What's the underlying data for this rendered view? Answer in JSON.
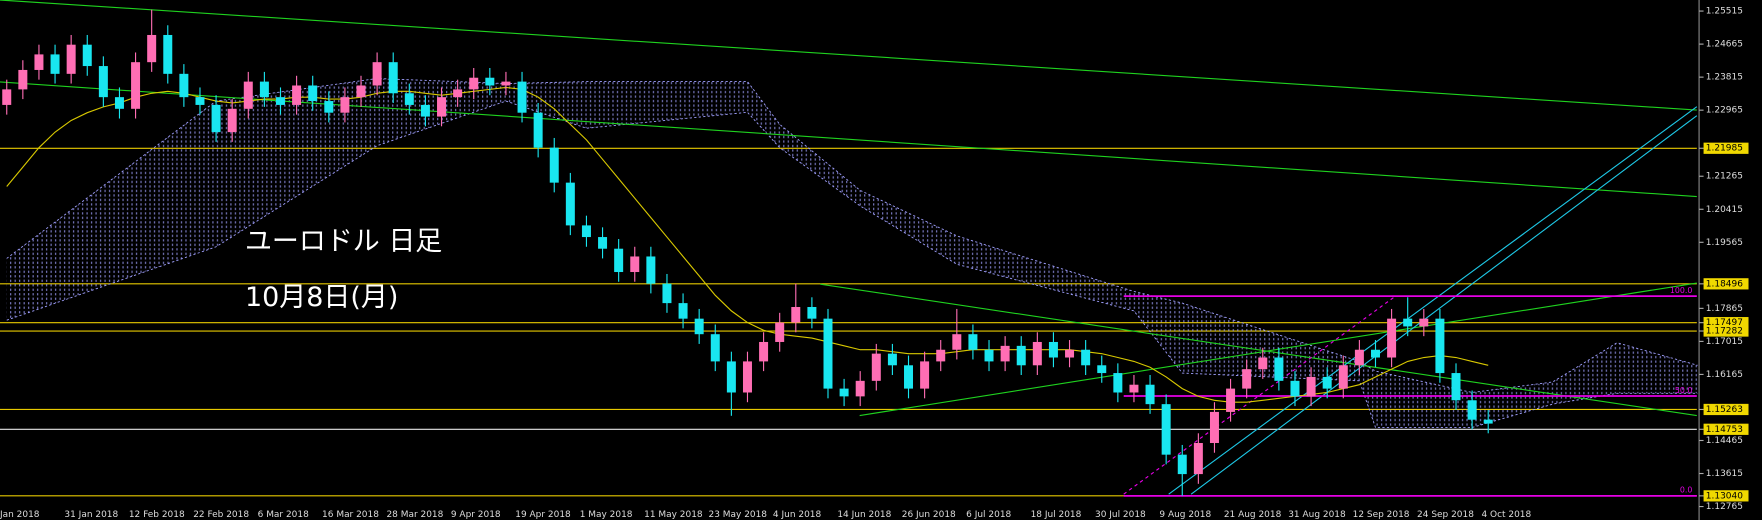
{
  "chart_data": {
    "type": "candlestick",
    "title": "ユーロドル 日足",
    "subtitle": "10月8日(月)",
    "categories": [
      "Jan 2018",
      null,
      null,
      null,
      "31 Jan 2018",
      null,
      null,
      null,
      "12 Feb 2018",
      null,
      null,
      null,
      "22 Feb 2018",
      null,
      null,
      null,
      "6 Mar 2018",
      null,
      null,
      null,
      "16 Mar 2018",
      null,
      null,
      null,
      "28 Mar 2018",
      null,
      null,
      null,
      "9 Apr 2018",
      null,
      null,
      null,
      "19 Apr 2018",
      null,
      null,
      null,
      "1 May 2018",
      null,
      null,
      null,
      "11 May 2018",
      null,
      null,
      null,
      "23 May 2018",
      null,
      null,
      null,
      "4 Jun 2018",
      null,
      null,
      null,
      "14 Jun 2018",
      null,
      null,
      null,
      "26 Jun 2018",
      null,
      null,
      null,
      "6 Jul 2018",
      null,
      null,
      null,
      "18 Jul 2018",
      null,
      null,
      null,
      "30 Jul 2018",
      null,
      null,
      null,
      "9 Aug 2018",
      null,
      null,
      null,
      "21 Aug 2018",
      null,
      null,
      null,
      "31 Aug 2018",
      null,
      null,
      null,
      "12 Sep 2018",
      null,
      null,
      null,
      "24 Sep 2018",
      null,
      null,
      null,
      "4 Oct 2018"
    ],
    "candles": {
      "open": [
        1.231,
        1.235,
        1.24,
        1.244,
        1.239,
        1.2465,
        1.241,
        1.233,
        1.23,
        1.242,
        1.249,
        1.239,
        1.233,
        1.231,
        1.224,
        1.23,
        1.237,
        1.233,
        1.231,
        1.236,
        1.232,
        1.229,
        1.233,
        1.236,
        1.242,
        1.234,
        1.231,
        1.228,
        1.233,
        1.235,
        1.238,
        1.236,
        1.237,
        1.229,
        1.22,
        1.211,
        1.2,
        1.197,
        1.194,
        1.188,
        1.192,
        1.185,
        1.18,
        1.176,
        1.172,
        1.165,
        1.157,
        1.165,
        1.17,
        1.175,
        1.179,
        1.176,
        1.158,
        1.156,
        1.16,
        1.167,
        1.164,
        1.158,
        1.165,
        1.168,
        1.172,
        1.168,
        1.165,
        1.169,
        1.164,
        1.17,
        1.166,
        1.168,
        1.164,
        1.162,
        1.157,
        1.159,
        1.154,
        1.141,
        1.136,
        1.144,
        1.152,
        1.158,
        1.163,
        1.166,
        1.16,
        1.156,
        1.161,
        1.158,
        1.164,
        1.168,
        1.166,
        1.176,
        1.174,
        1.176,
        1.162,
        1.155,
        1.15
      ],
      "high": [
        1.2375,
        1.2425,
        1.2465,
        1.2465,
        1.249,
        1.249,
        1.2435,
        1.2355,
        1.2445,
        1.2555,
        1.2515,
        1.2415,
        1.2355,
        1.2335,
        1.2325,
        1.2395,
        1.2395,
        1.2355,
        1.2385,
        1.2385,
        1.2345,
        1.2355,
        1.2385,
        1.2445,
        1.2445,
        1.2365,
        1.2335,
        1.2355,
        1.2375,
        1.2405,
        1.2405,
        1.2395,
        1.2395,
        1.2315,
        1.2225,
        1.2135,
        1.2025,
        1.1995,
        1.1965,
        1.1945,
        1.1945,
        1.1875,
        1.1825,
        1.1785,
        1.1745,
        1.1675,
        1.1675,
        1.1725,
        1.1775,
        1.185,
        1.1815,
        1.1785,
        1.1605,
        1.1625,
        1.1695,
        1.1695,
        1.1665,
        1.1675,
        1.1705,
        1.1785,
        1.1745,
        1.1705,
        1.1715,
        1.1715,
        1.1725,
        1.1725,
        1.1705,
        1.1705,
        1.1665,
        1.1645,
        1.1615,
        1.1615,
        1.1565,
        1.1435,
        1.1465,
        1.1545,
        1.1605,
        1.1655,
        1.1685,
        1.1685,
        1.1625,
        1.1635,
        1.1635,
        1.1665,
        1.1705,
        1.1705,
        1.1785,
        1.1815,
        1.1785,
        1.1785,
        1.1645,
        1.1575,
        1.1525
      ],
      "low": [
        1.2285,
        1.2325,
        1.2375,
        1.2365,
        1.2365,
        1.2385,
        1.2305,
        1.2275,
        1.2275,
        1.2395,
        1.2365,
        1.2305,
        1.2285,
        1.2215,
        1.2215,
        1.2275,
        1.2305,
        1.2285,
        1.2285,
        1.2295,
        1.2265,
        1.2265,
        1.2305,
        1.2335,
        1.2315,
        1.2285,
        1.2255,
        1.2255,
        1.2305,
        1.2325,
        1.2335,
        1.2335,
        1.2265,
        1.2175,
        1.2085,
        1.1975,
        1.1945,
        1.1915,
        1.1855,
        1.1855,
        1.1825,
        1.1775,
        1.1735,
        1.1695,
        1.1625,
        1.151,
        1.1545,
        1.1625,
        1.1675,
        1.1725,
        1.1735,
        1.1555,
        1.1535,
        1.1535,
        1.1575,
        1.1615,
        1.1555,
        1.1555,
        1.1625,
        1.1655,
        1.1655,
        1.1625,
        1.1625,
        1.1615,
        1.1615,
        1.1635,
        1.1635,
        1.1615,
        1.1595,
        1.1545,
        1.1545,
        1.1515,
        1.1385,
        1.1304,
        1.1335,
        1.1415,
        1.1495,
        1.1555,
        1.1605,
        1.1575,
        1.1535,
        1.1535,
        1.1555,
        1.1555,
        1.1615,
        1.1635,
        1.1635,
        1.1715,
        1.1715,
        1.1595,
        1.1525,
        1.1475,
        1.1465
      ],
      "close": [
        1.235,
        1.24,
        1.244,
        1.239,
        1.2465,
        1.241,
        1.233,
        1.23,
        1.242,
        1.249,
        1.239,
        1.233,
        1.231,
        1.224,
        1.23,
        1.237,
        1.233,
        1.231,
        1.236,
        1.232,
        1.229,
        1.233,
        1.236,
        1.242,
        1.234,
        1.231,
        1.228,
        1.233,
        1.235,
        1.238,
        1.236,
        1.237,
        1.229,
        1.22,
        1.211,
        1.2,
        1.197,
        1.194,
        1.188,
        1.192,
        1.185,
        1.18,
        1.176,
        1.172,
        1.165,
        1.157,
        1.165,
        1.17,
        1.175,
        1.179,
        1.176,
        1.158,
        1.156,
        1.16,
        1.167,
        1.164,
        1.158,
        1.165,
        1.168,
        1.172,
        1.168,
        1.165,
        1.169,
        1.164,
        1.17,
        1.166,
        1.168,
        1.164,
        1.162,
        1.157,
        1.159,
        1.154,
        1.141,
        1.136,
        1.144,
        1.152,
        1.158,
        1.163,
        1.166,
        1.16,
        1.156,
        1.161,
        1.158,
        1.164,
        1.168,
        1.166,
        1.176,
        1.174,
        1.176,
        1.162,
        1.155,
        1.15,
        1.149
      ],
      "up_color": "#ff6eb4",
      "down_color": "#19e6f0"
    },
    "ma": {
      "color": "#d8c800",
      "values": [
        1.21,
        1.215,
        1.22,
        1.224,
        1.227,
        1.229,
        1.2305,
        1.2315,
        1.233,
        1.234,
        1.2345,
        1.234,
        1.233,
        1.232,
        1.2315,
        1.232,
        1.2325,
        1.2325,
        1.233,
        1.233,
        1.2325,
        1.2325,
        1.233,
        1.234,
        1.2345,
        1.2345,
        1.234,
        1.2335,
        1.234,
        1.2345,
        1.235,
        1.2355,
        1.235,
        1.233,
        1.23,
        1.226,
        1.222,
        1.217,
        1.212,
        1.207,
        1.202,
        1.197,
        1.192,
        1.187,
        1.182,
        1.178,
        1.175,
        1.173,
        1.172,
        1.1715,
        1.171,
        1.17,
        1.169,
        1.168,
        1.168,
        1.1675,
        1.167,
        1.167,
        1.167,
        1.1675,
        1.168,
        1.168,
        1.168,
        1.168,
        1.168,
        1.168,
        1.168,
        1.1675,
        1.167,
        1.166,
        1.165,
        1.1635,
        1.161,
        1.158,
        1.156,
        1.155,
        1.1545,
        1.1545,
        1.155,
        1.1555,
        1.156,
        1.1565,
        1.157,
        1.158,
        1.159,
        1.161,
        1.163,
        1.165,
        1.166,
        1.1665,
        1.166,
        1.165,
        1.164
      ]
    },
    "cloud": {
      "color": "#a0a0ff",
      "x": [
        0,
        13,
        23,
        31,
        36,
        46,
        48,
        53,
        59,
        70,
        73,
        84,
        85,
        91,
        96,
        100,
        105
      ],
      "upper": [
        1.1915,
        1.232,
        1.2378,
        1.2365,
        1.237,
        1.237,
        1.226,
        1.209,
        1.1973,
        1.183,
        1.18,
        1.165,
        1.1625,
        1.157,
        1.1597,
        1.1698,
        1.164
      ],
      "lower": [
        1.1756,
        1.1945,
        1.2205,
        1.232,
        1.225,
        1.2291,
        1.22,
        1.205,
        1.19,
        1.178,
        1.162,
        1.16,
        1.148,
        1.148,
        1.154,
        1.1568,
        1.1568
      ]
    },
    "hlines": [
      {
        "value": 1.21985,
        "color": "#e6c800"
      },
      {
        "value": 1.18496,
        "color": "#e6c800"
      },
      {
        "value": 1.17497,
        "color": "#e6c800"
      },
      {
        "value": 1.17282,
        "color": "#e6c800"
      },
      {
        "value": 1.15263,
        "color": "#e6c800"
      },
      {
        "value": 1.14753,
        "color": "#e6e6e6"
      },
      {
        "value": 1.1304,
        "color": "#e6c800"
      }
    ],
    "fibo": {
      "color": "#e600e6",
      "levels": [
        {
          "value": 1.1818,
          "label": "100.0"
        },
        {
          "value": 1.1561,
          "label": "50.0"
        },
        {
          "value": 1.1304,
          "label": "0.0"
        }
      ]
    },
    "ylim": [
      1.1265,
      1.258
    ],
    "yticks": [
      1.25515,
      1.24665,
      1.23815,
      1.22965,
      1.21985,
      1.21265,
      1.20415,
      1.19565,
      1.18496,
      1.17865,
      1.17497,
      1.17282,
      1.17015,
      1.16165,
      1.15263,
      1.14753,
      1.14465,
      1.13615,
      {
        "value": 1.1304,
        "label": "1.13040"
      },
      1.12765
    ],
    "highlight_color": "#f0d800"
  }
}
